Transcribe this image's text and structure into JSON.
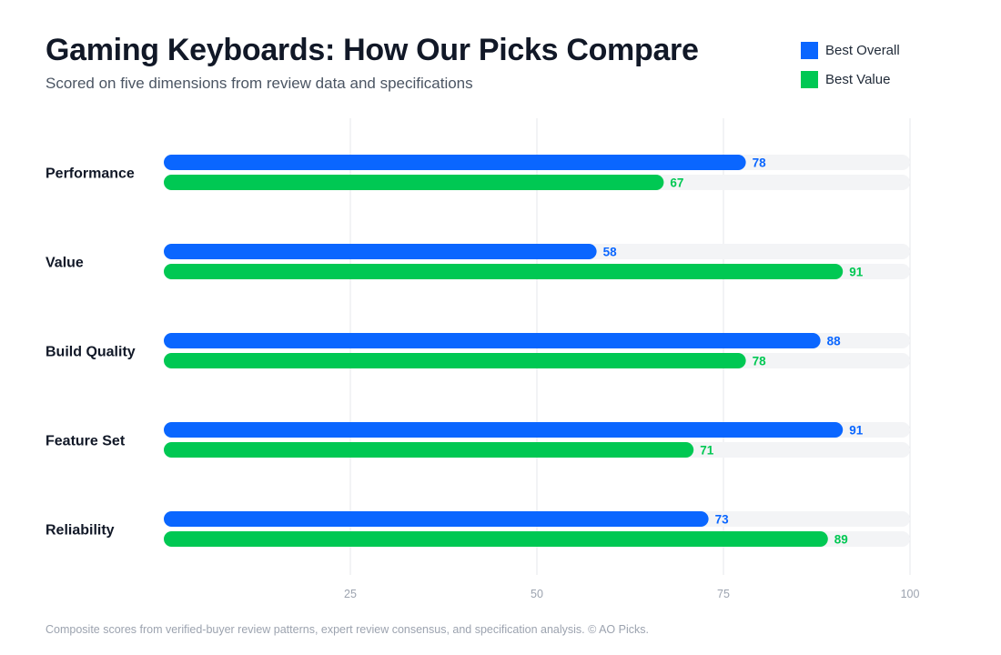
{
  "header": {
    "title": "Gaming Keyboards: How Our Picks Compare",
    "subtitle": "Scored on five dimensions from review data and specifications"
  },
  "footnote": "Composite scores from verified-buyer review patterns, expert review consensus, and specification analysis. © AO Picks.",
  "colors": {
    "best_overall": "#0a66ff",
    "best_value": "#00c853",
    "track": "#f3f4f6",
    "gridline": "#e5e7eb"
  },
  "chart_data": {
    "type": "bar",
    "orientation": "horizontal",
    "title": "Gaming Keyboards: How Our Picks Compare",
    "subtitle": "Scored on five dimensions from review data and specifications",
    "categories": [
      "Performance",
      "Value",
      "Build Quality",
      "Feature Set",
      "Reliability"
    ],
    "series": [
      {
        "name": "Best Overall",
        "color": "#0a66ff",
        "values": [
          78,
          58,
          88,
          91,
          73
        ]
      },
      {
        "name": "Best Value",
        "color": "#00c853",
        "values": [
          67,
          91,
          78,
          71,
          89
        ]
      }
    ],
    "xlim": [
      0,
      100
    ],
    "xticks": [
      25,
      50,
      75,
      100
    ],
    "grid": true,
    "legend": "top-right",
    "data_labels": true
  }
}
